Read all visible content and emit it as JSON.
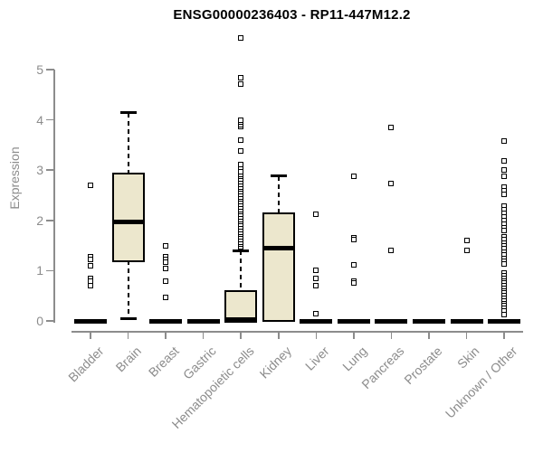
{
  "chart_data": {
    "type": "boxplot",
    "title": "ENSG00000236403 - RP11-447M12.2",
    "ylabel": "Expression",
    "yticks": [
      "0",
      "1",
      "2",
      "3",
      "4",
      "5"
    ],
    "ylim": [
      0,
      5.8
    ],
    "grid": false,
    "legend": "none",
    "colors": {
      "box_fill": "#ece7cd",
      "box_border": "#000000",
      "median": "#000000",
      "axis": "#8c8c8c",
      "labels": "#8c8c8c",
      "title": "#000000",
      "background": "#ffffff"
    },
    "categories": [
      "Bladder",
      "Brain",
      "Breast",
      "Gastric",
      "Hematopoietic cells",
      "Kidney",
      "Liver",
      "Lung",
      "Pancreas",
      "Prostate",
      "Skin",
      "Unknown / Other"
    ],
    "series": [
      {
        "category": "Bladder",
        "q1": 0,
        "median": 0,
        "q3": 0,
        "whisker_low": 0,
        "whisker_high": 0,
        "outliers": [
          2.7,
          1.27,
          1.23,
          1.1,
          0.85,
          0.79,
          0.71
        ]
      },
      {
        "category": "Brain",
        "q1": 1.21,
        "median": 1.97,
        "q3": 2.92,
        "whisker_low": 0.05,
        "whisker_high": 4.14,
        "outliers": []
      },
      {
        "category": "Breast",
        "q1": 0,
        "median": 0,
        "q3": 0,
        "whisker_low": 0,
        "whisker_high": 0,
        "outliers": [
          1.49,
          1.28,
          1.22,
          1.17,
          1.04,
          0.79,
          0.47
        ]
      },
      {
        "category": "Gastric",
        "q1": 0,
        "median": 0,
        "q3": 0,
        "whisker_low": 0,
        "whisker_high": 0,
        "outliers": []
      },
      {
        "category": "Hematopoietic cells",
        "q1": 0,
        "median": 0.03,
        "q3": 0.58,
        "whisker_low": 0,
        "whisker_high": 1.4,
        "outliers": [
          1.47,
          1.52,
          1.57,
          1.62,
          1.67,
          1.72,
          1.77,
          1.82,
          1.87,
          1.92,
          1.97,
          2.02,
          2.07,
          2.12,
          2.17,
          2.22,
          2.27,
          2.32,
          2.37,
          2.42,
          2.47,
          2.52,
          2.57,
          2.62,
          2.67,
          2.72,
          2.77,
          2.82,
          2.87,
          2.92,
          2.97,
          3.05,
          3.11,
          3.38,
          3.6,
          3.87,
          3.91,
          3.95,
          3.99,
          4.71,
          4.84,
          5.63
        ]
      },
      {
        "category": "Kidney",
        "q1": 0.02,
        "median": 1.44,
        "q3": 2.12,
        "whisker_low": 0.02,
        "whisker_high": 2.88,
        "outliers": []
      },
      {
        "category": "Liver",
        "q1": 0,
        "median": 0,
        "q3": 0,
        "whisker_low": 0,
        "whisker_high": 0,
        "outliers": [
          2.12,
          1.01,
          0.85,
          0.7,
          0.15
        ]
      },
      {
        "category": "Lung",
        "q1": 0,
        "median": 0,
        "q3": 0,
        "whisker_low": 0,
        "whisker_high": 0,
        "outliers": [
          2.88,
          1.66,
          1.62,
          1.12,
          0.79,
          0.75
        ]
      },
      {
        "category": "Pancreas",
        "q1": 0,
        "median": 0,
        "q3": 0,
        "whisker_low": 0,
        "whisker_high": 0,
        "outliers": [
          3.85,
          2.73,
          1.4
        ]
      },
      {
        "category": "Prostate",
        "q1": 0,
        "median": 0,
        "q3": 0,
        "whisker_low": 0,
        "whisker_high": 0,
        "outliers": []
      },
      {
        "category": "Skin",
        "q1": 0,
        "median": 0,
        "q3": 0,
        "whisker_low": 0,
        "whisker_high": 0,
        "outliers": [
          1.6,
          1.4
        ]
      },
      {
        "category": "Unknown / Other",
        "q1": 0,
        "median": 0,
        "q3": 0,
        "whisker_low": 0,
        "whisker_high": 0,
        "outliers": [
          3.58,
          3.18,
          3.0,
          2.88,
          2.66,
          2.59,
          2.52,
          2.28,
          2.21,
          2.14,
          2.07,
          2.0,
          1.93,
          1.86,
          1.8,
          1.67,
          1.61,
          1.55,
          1.49,
          1.43,
          1.37,
          1.31,
          1.25,
          1.19,
          1.13,
          0.95,
          0.9,
          0.85,
          0.8,
          0.75,
          0.7,
          0.65,
          0.6,
          0.55,
          0.5,
          0.45,
          0.4,
          0.35,
          0.3,
          0.25,
          0.2,
          0.13
        ]
      }
    ]
  }
}
